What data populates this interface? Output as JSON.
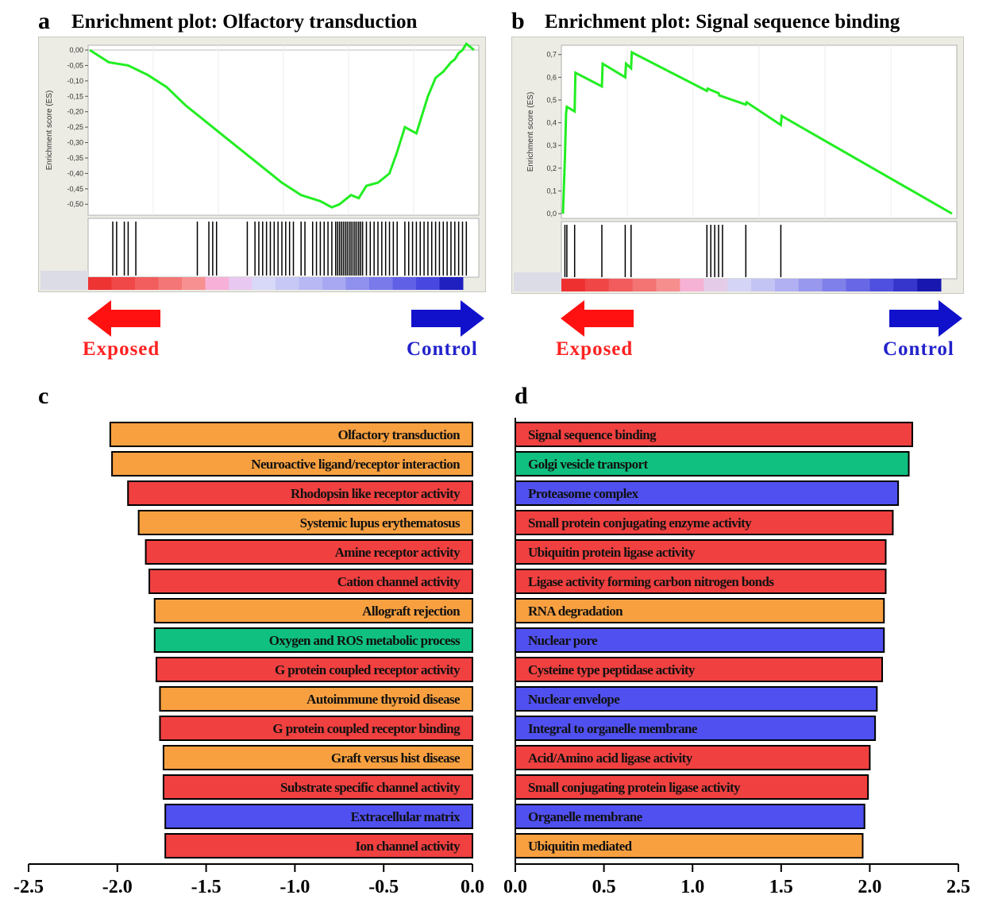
{
  "panels": [
    {
      "letter": "a",
      "title": "Enrichment plot:  Olfactory transduction",
      "ylabel": "Enrichment score (ES)",
      "yticks": [
        "0,00",
        "-0,05",
        "-0,10",
        "-0,15",
        "-0,20",
        "-0,25",
        "-0,30",
        "-0,35",
        "-0,40",
        "-0,45",
        "-0,50"
      ],
      "line_color": "#22ee22",
      "left_label": "Exposed",
      "right_label": "Control"
    },
    {
      "letter": "b",
      "title": "Enrichment plot:  Signal sequence binding",
      "ylabel": "Enrichment score (ES)",
      "yticks": [
        "0,7",
        "0,6",
        "0,5",
        "0,4",
        "0,3",
        "0,2",
        "0,1",
        "0,0"
      ],
      "line_color": "#22ee22",
      "left_label": "Exposed",
      "right_label": "Control"
    },
    {
      "letter": "c"
    },
    {
      "letter": "d"
    }
  ],
  "colors": {
    "exposed": "#ff1111",
    "control": "#1111cc",
    "category_red": "#f04040",
    "category_orange": "#f8a040",
    "category_green": "#10c080",
    "category_blue": "#5050f0"
  },
  "chart_data": [
    {
      "type": "line",
      "panel": "a",
      "title": "Enrichment plot:  Olfactory transduction",
      "ylabel": "Enrichment score (ES)",
      "ylim": [
        -0.52,
        0.0
      ],
      "x": [
        0,
        5,
        10,
        15,
        20,
        25,
        30,
        35,
        40,
        45,
        50,
        55,
        60,
        63,
        65,
        66,
        68,
        70,
        72,
        75,
        78,
        80,
        82,
        85,
        88,
        90,
        92,
        94,
        95,
        96,
        97,
        98,
        99,
        100
      ],
      "values": [
        0.0,
        -0.04,
        -0.05,
        -0.08,
        -0.12,
        -0.18,
        -0.23,
        -0.28,
        -0.33,
        -0.38,
        -0.43,
        -0.47,
        -0.49,
        -0.51,
        -0.5,
        -0.49,
        -0.47,
        -0.48,
        -0.44,
        -0.43,
        -0.4,
        -0.33,
        -0.25,
        -0.27,
        -0.15,
        -0.09,
        -0.07,
        -0.04,
        -0.03,
        -0.01,
        0.0,
        0.02,
        0.01,
        0.0
      ],
      "hits_rank": [
        6,
        7,
        9,
        10,
        12,
        28,
        31,
        32,
        33,
        41,
        43,
        44,
        45,
        46,
        47,
        48,
        49,
        50,
        51,
        52,
        53,
        55,
        56,
        58,
        59,
        60,
        61,
        62,
        63,
        64,
        64.5,
        65,
        65.5,
        66,
        66.5,
        67,
        67.5,
        68,
        68.5,
        69,
        69.5,
        70,
        70.5,
        71,
        72,
        73,
        74,
        75,
        76,
        77,
        78,
        79,
        80,
        82,
        83,
        84,
        85,
        86,
        87,
        88,
        89,
        90,
        91,
        92,
        93,
        94,
        95,
        96,
        97,
        98
      ]
    },
    {
      "type": "line",
      "panel": "b",
      "title": "Enrichment plot:  Signal sequence binding",
      "ylabel": "Enrichment score (ES)",
      "ylim": [
        0.0,
        0.72
      ],
      "x": [
        0,
        0.5,
        0.8,
        1.0,
        3.0,
        3.2,
        10,
        10.2,
        16,
        16.2,
        17.5,
        17.7,
        37,
        37.2,
        40,
        40.2,
        47,
        47.2,
        56,
        56.2,
        100
      ],
      "values": [
        0.0,
        0.25,
        0.44,
        0.47,
        0.45,
        0.62,
        0.56,
        0.66,
        0.6,
        0.66,
        0.64,
        0.71,
        0.54,
        0.55,
        0.53,
        0.52,
        0.48,
        0.49,
        0.39,
        0.43,
        0.0
      ],
      "hits_rank": [
        0.5,
        1,
        3,
        10,
        16,
        17.5,
        37,
        38,
        39,
        40,
        41,
        47,
        56
      ]
    },
    {
      "type": "bar",
      "panel": "c",
      "orientation": "horizontal",
      "xlim": [
        -2.5,
        0.0
      ],
      "xticks": [
        "-2.5",
        "-2.0",
        "-1.5",
        "-1.0",
        "-0.5",
        "0.0"
      ],
      "categories": [
        "Olfactory transduction",
        "Neuroactive ligand/receptor interaction",
        "Rhodopsin like receptor activity",
        "Systemic lupus erythematosus",
        "Amine receptor activity",
        "Cation channel activity",
        "Allograft rejection",
        "Oxygen and ROS metabolic process",
        "G protein coupled receptor activity",
        "Autoimmune thyroid disease",
        "G protein coupled receptor binding",
        "Graft versus hist disease",
        "Substrate specific channel activity",
        "Extracellular matrix",
        "Ion channel activity"
      ],
      "values": [
        -2.04,
        -2.03,
        -1.94,
        -1.88,
        -1.84,
        -1.82,
        -1.79,
        -1.79,
        -1.78,
        -1.76,
        -1.76,
        -1.74,
        -1.74,
        -1.73,
        -1.73
      ],
      "bar_colors": [
        "orange",
        "orange",
        "red",
        "orange",
        "red",
        "red",
        "orange",
        "green",
        "red",
        "orange",
        "red",
        "orange",
        "red",
        "blue",
        "red"
      ]
    },
    {
      "type": "bar",
      "panel": "d",
      "orientation": "horizontal",
      "xlim": [
        0.0,
        2.5
      ],
      "xticks": [
        "0.0",
        "0.5",
        "1.0",
        "1.5",
        "2.0",
        "2.5"
      ],
      "categories": [
        "Signal sequence binding",
        "Golgi vesicle transport",
        "Proteasome complex",
        "Small protein conjugating enzyme activity",
        "Ubiquitin protein ligase activity",
        "Ligase activity forming carbon nitrogen bonds",
        "RNA degradation",
        "Nuclear pore",
        "Cysteine type peptidase activity",
        "Nuclear envelope",
        "Integral to organelle membrane",
        "Acid/Amino acid ligase activity",
        "Small conjugating protein ligase activity",
        "Organelle membrane",
        "Ubiquitin mediated"
      ],
      "values": [
        2.24,
        2.22,
        2.16,
        2.13,
        2.09,
        2.09,
        2.08,
        2.08,
        2.07,
        2.04,
        2.03,
        2.0,
        1.99,
        1.97,
        1.96
      ],
      "bar_colors": [
        "red",
        "green",
        "blue",
        "red",
        "red",
        "red",
        "orange",
        "blue",
        "red",
        "blue",
        "blue",
        "red",
        "red",
        "blue",
        "orange"
      ]
    }
  ]
}
